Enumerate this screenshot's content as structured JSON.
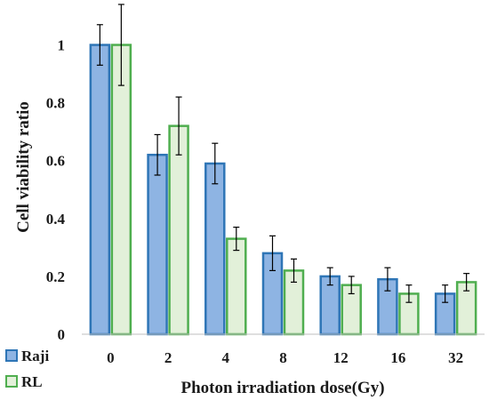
{
  "chart_data": {
    "type": "bar",
    "title": "",
    "xlabel": "Photon irradiation dose(Gy)",
    "ylabel": "Cell viability ratio",
    "categories": [
      "0",
      "2",
      "4",
      "8",
      "12",
      "16",
      "32"
    ],
    "ylim": [
      0,
      1.1
    ],
    "yticks": [
      "0",
      "0.2",
      "0.4",
      "0.6",
      "0.8",
      "1"
    ],
    "grid": false,
    "legend_position": "bottom-left",
    "series": [
      {
        "name": "Raji",
        "values": [
          1.0,
          0.62,
          0.59,
          0.28,
          0.2,
          0.19,
          0.14
        ],
        "errors": [
          0.07,
          0.07,
          0.07,
          0.06,
          0.03,
          0.04,
          0.03
        ],
        "fill": "#8eb4e3",
        "stroke": "#2e75b6"
      },
      {
        "name": "RL",
        "values": [
          1.0,
          0.72,
          0.33,
          0.22,
          0.17,
          0.14,
          0.18
        ],
        "errors": [
          0.14,
          0.1,
          0.04,
          0.04,
          0.03,
          0.03,
          0.03
        ],
        "fill": "#e2f0d9",
        "stroke": "#4fae4f"
      }
    ]
  }
}
